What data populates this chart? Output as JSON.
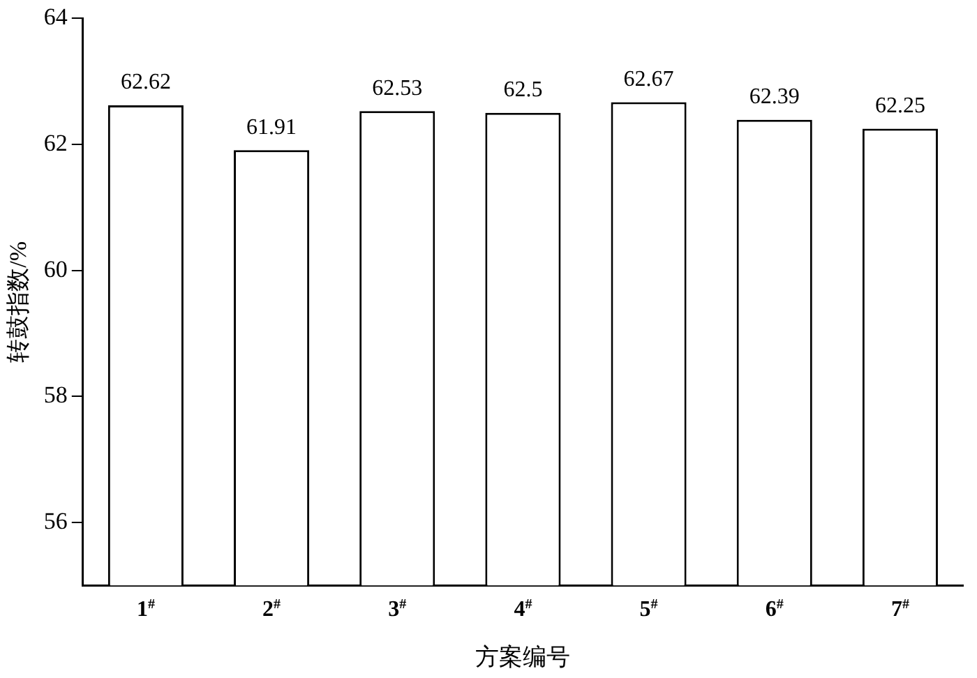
{
  "chart_data": {
    "type": "bar",
    "xlabel": "方案编号",
    "ylabel": "转鼓指数/%",
    "categories": [
      "1$^{#}$",
      "2$^{#}$",
      "3$^{#}$",
      "4$^{#}$",
      "5$^{#}$",
      "6$^{#}$",
      "7$^{#}$"
    ],
    "values": [
      62.62,
      61.91,
      62.53,
      62.5,
      62.67,
      62.39,
      62.25
    ],
    "color": "#ffffff",
    "ylim": [
      55,
      64
    ],
    "yticks": [
      56,
      58,
      60,
      62,
      64
    ],
    "data_labels": true,
    "grid": false,
    "legend": false
  }
}
